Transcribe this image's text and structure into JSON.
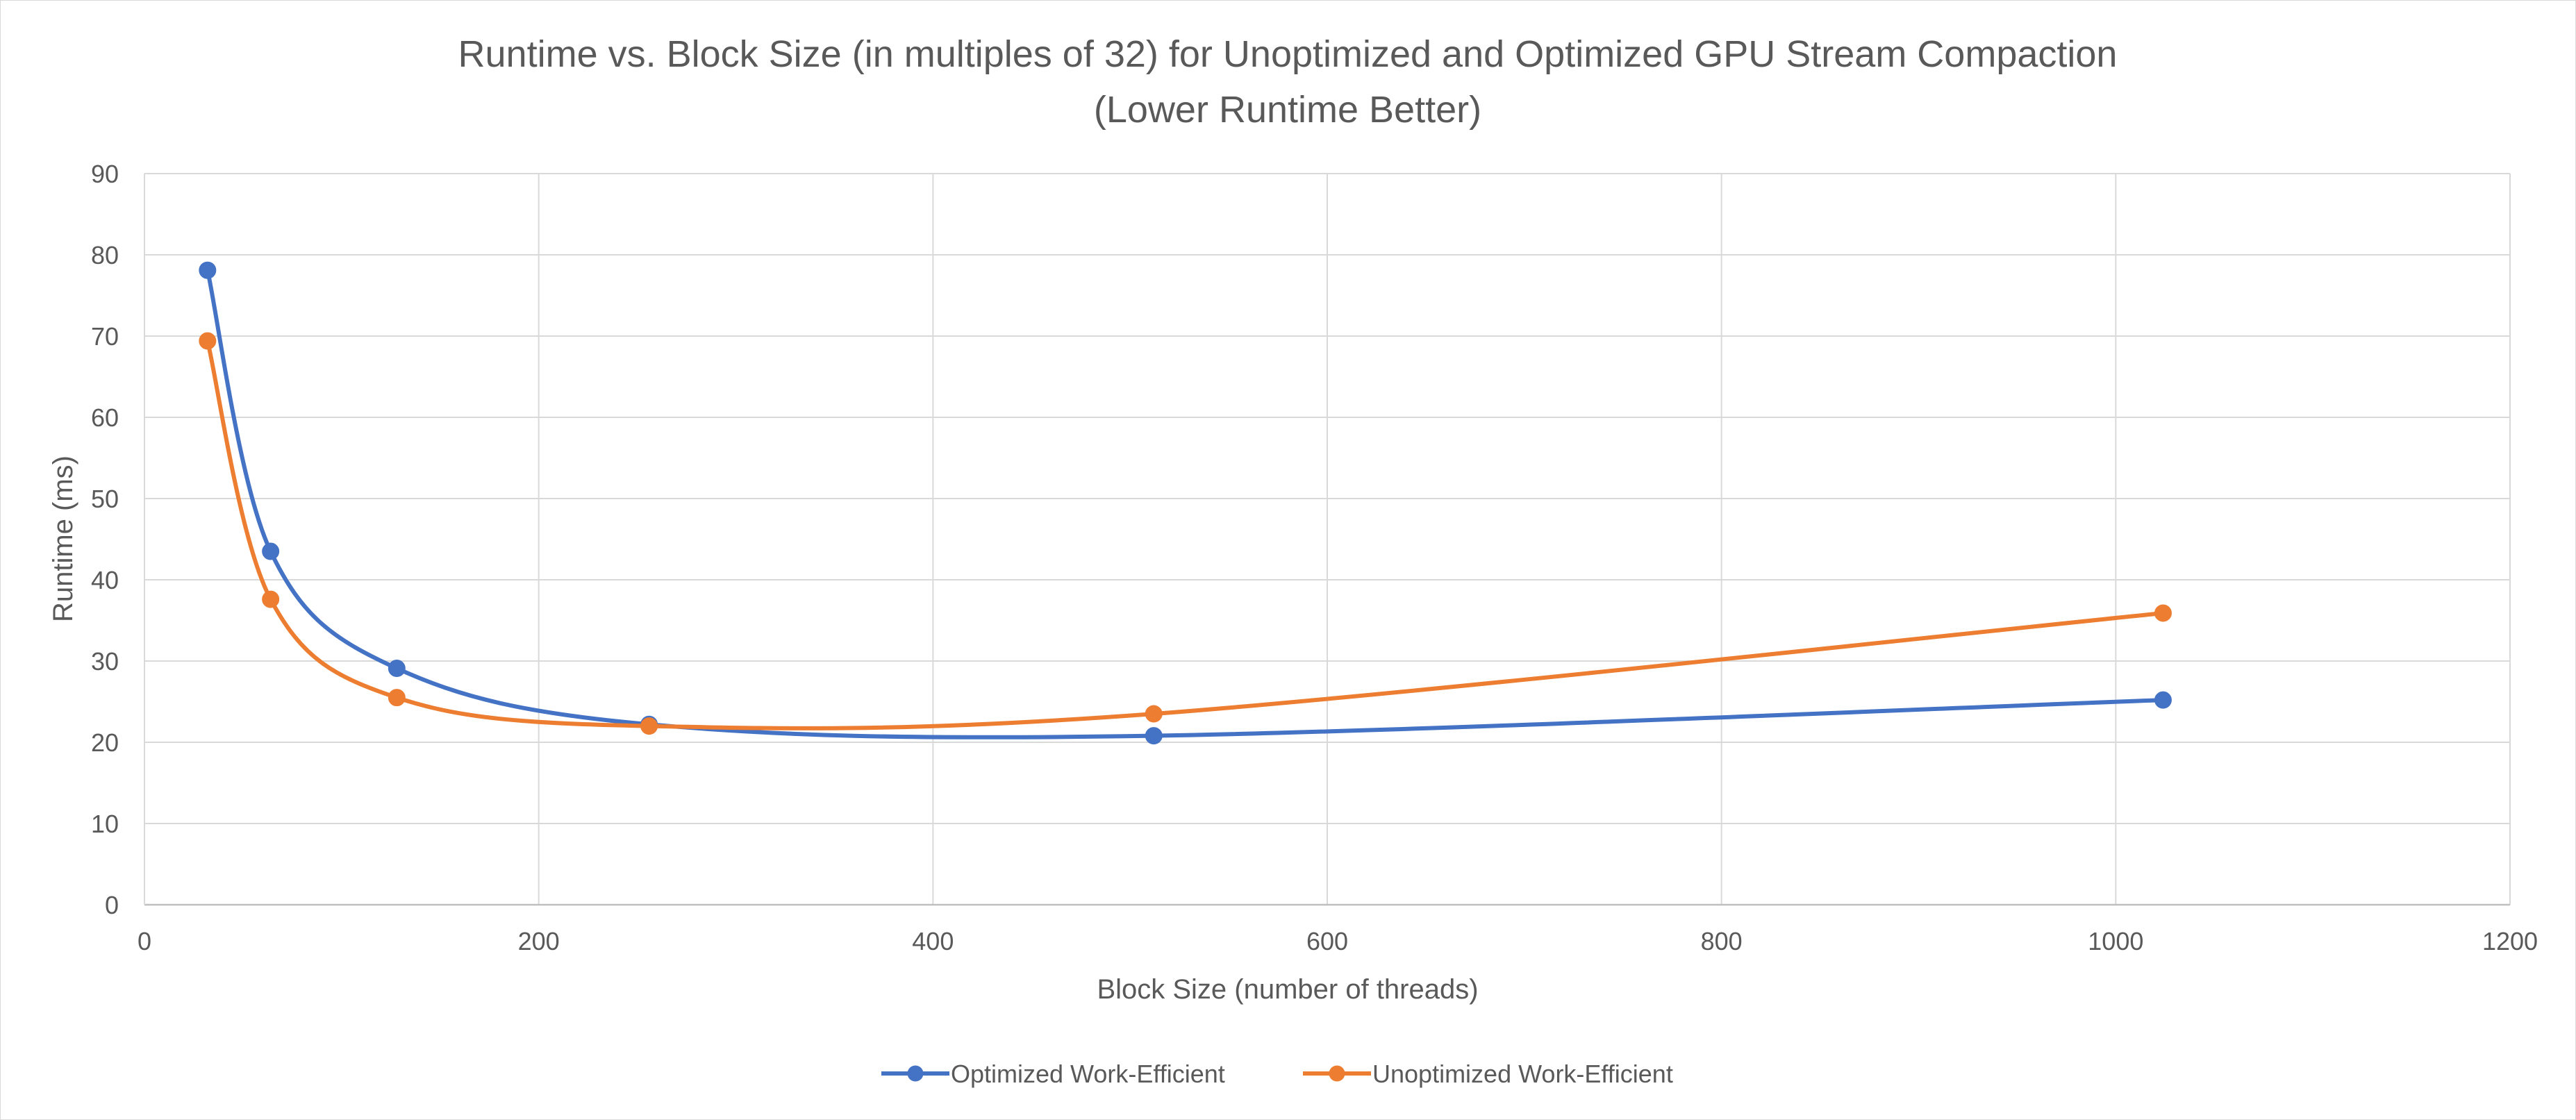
{
  "chart_data": {
    "type": "scatter",
    "title": "Runtime vs. Block Size (in multiples of 32) for Unoptimized and Optimized GPU Stream Compaction",
    "subtitle": "(Lower Runtime Better)",
    "xlabel": "Block Size (number of threads)",
    "ylabel": "Runtime (ms)",
    "xlim": [
      0,
      1200
    ],
    "ylim": [
      0,
      90
    ],
    "x_ticks": [
      0,
      200,
      400,
      600,
      800,
      1000,
      1200
    ],
    "y_ticks": [
      0,
      10,
      20,
      30,
      40,
      50,
      60,
      70,
      80,
      90
    ],
    "grid": true,
    "smooth_lines": true,
    "legend_position": "bottom",
    "series": [
      {
        "name": "Optimized Work-Efficient",
        "color": "#4472c4",
        "x": [
          32,
          64,
          128,
          256,
          512,
          1024
        ],
        "y": [
          78.1,
          43.5,
          29.1,
          22.2,
          20.8,
          25.2
        ]
      },
      {
        "name": "Unoptimized Work-Efficient",
        "color": "#ed7d31",
        "x": [
          32,
          64,
          128,
          256,
          512,
          1024
        ],
        "y": [
          69.4,
          37.6,
          25.5,
          22.0,
          23.5,
          35.9
        ]
      }
    ]
  }
}
